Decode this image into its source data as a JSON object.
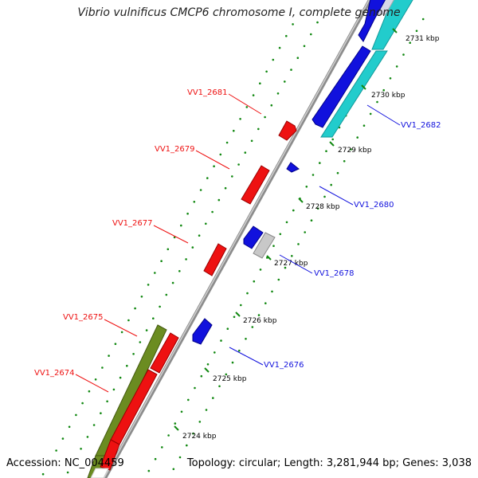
{
  "header": {
    "title": "Vibrio vulnificus CMCP6 chromosome I, complete genome"
  },
  "footer": {
    "accession": "Accession: NC_004459",
    "topology": "Topology: circular; Length: 3,281,944 bp; Genes: 3,038"
  },
  "colors": {
    "backbone": "#8c8c8c",
    "forward_gene": "#ee1111",
    "reverse_gene": "#1111dd",
    "forward_cds_large": "#6b8c21",
    "reverse_cds_large": "#22cccc",
    "unknown_gene": "#c8c8c8",
    "dots": "#118811",
    "forward_label": "#ee1111",
    "reverse_label": "#1111dd"
  },
  "ticks": [
    "2724 kbp",
    "2725 kbp",
    "2726 kbp",
    "2727 kbp",
    "2728 kbp",
    "2729 kbp",
    "2730 kbp",
    "2731 kbp"
  ],
  "gene_labels": {
    "forward": [
      "VV1_2681",
      "VV1_2679",
      "VV1_2677",
      "VV1_2675",
      "VV1_2674"
    ],
    "reverse": [
      "VV1_2682",
      "VV1_2680",
      "VV1_2678",
      "VV1_2676"
    ]
  }
}
